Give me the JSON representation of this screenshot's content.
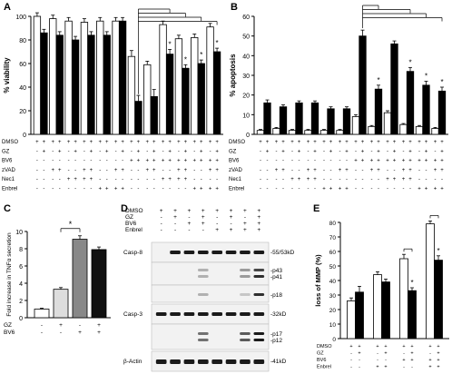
{
  "figure": {
    "panels": [
      "A",
      "B",
      "C",
      "D",
      "E"
    ],
    "colors": {
      "white_bar": "#ffffff",
      "black_bar": "#000000",
      "gray_bar": "#888888",
      "light_bar": "#d9d9d9",
      "blot_bg": "#f2f2f2",
      "band": "#1a1a1a"
    }
  },
  "chart_data": [
    {
      "panel": "A",
      "type": "bar",
      "ylabel": "% viability",
      "ylim": [
        0,
        100
      ],
      "yticks": [
        0,
        20,
        40,
        60,
        80,
        100
      ],
      "row_labels": [
        "DMSO",
        "GZ",
        "BV6",
        "zVAD",
        "Nec1",
        "Enbrel"
      ],
      "treatment_rows": [
        [
          "+",
          "+",
          "+",
          "+",
          "+",
          "+",
          "+",
          "+",
          "+",
          "+",
          "+",
          "+",
          "+",
          "+",
          "+",
          "+",
          "+",
          "+",
          "+",
          "+",
          "+",
          "+",
          "+",
          "+"
        ],
        [
          "-",
          "+",
          "-",
          "+",
          "-",
          "+",
          "-",
          "+",
          "-",
          "+",
          "-",
          "+",
          "-",
          "+",
          "-",
          "+",
          "-",
          "+",
          "-",
          "+",
          "-",
          "+",
          "-",
          "+"
        ],
        [
          "-",
          "-",
          "-",
          "-",
          "-",
          "-",
          "-",
          "-",
          "-",
          "-",
          "-",
          "-",
          "+",
          "+",
          "+",
          "+",
          "+",
          "+",
          "+",
          "+",
          "+",
          "+",
          "+",
          "+"
        ],
        [
          "-",
          "-",
          "+",
          "+",
          "-",
          "-",
          "+",
          "+",
          "-",
          "-",
          "+",
          "+",
          "-",
          "-",
          "+",
          "+",
          "-",
          "-",
          "+",
          "+",
          "-",
          "-",
          "+",
          "+"
        ],
        [
          "-",
          "-",
          "-",
          "-",
          "+",
          "+",
          "+",
          "+",
          "-",
          "-",
          "-",
          "-",
          "-",
          "-",
          "-",
          "-",
          "+",
          "+",
          "+",
          "+",
          "-",
          "-",
          "-",
          "-"
        ],
        [
          "-",
          "-",
          "-",
          "-",
          "-",
          "-",
          "-",
          "-",
          "+",
          "+",
          "+",
          "+",
          "-",
          "-",
          "-",
          "-",
          "-",
          "-",
          "-",
          "-",
          "+",
          "+",
          "+",
          "+"
        ]
      ],
      "series": [
        {
          "name": "",
          "values": [
            100,
            98,
            96,
            95,
            96,
            96,
            66,
            59,
            93,
            81,
            82,
            91
          ]
        },
        {
          "name": "",
          "values": [
            86,
            84,
            80,
            84,
            84,
            96,
            28,
            32,
            68,
            56,
            60,
            70
          ]
        }
      ],
      "errors": [
        [
          3,
          3,
          3,
          3,
          3,
          3,
          5,
          3,
          3,
          3,
          3,
          3
        ],
        [
          3,
          3,
          3,
          3,
          3,
          3,
          5,
          6,
          4,
          3,
          3,
          3
        ]
      ],
      "significance": [
        "",
        "",
        "",
        "",
        "",
        "",
        "",
        "",
        "*",
        "*",
        "*",
        "*"
      ]
    },
    {
      "panel": "B",
      "type": "bar",
      "ylabel": "% apoptosis",
      "ylim": [
        0,
        60
      ],
      "yticks": [
        0,
        10,
        20,
        30,
        40,
        50,
        60
      ],
      "row_labels": [
        "DMSO",
        "GZ",
        "BV6",
        "zVAD",
        "Nec1",
        "Enbrel"
      ],
      "treatment_rows": [
        [
          "+",
          "+",
          "+",
          "+",
          "+",
          "+",
          "+",
          "+",
          "+",
          "+",
          "+",
          "+",
          "+",
          "+",
          "+",
          "+",
          "+",
          "+",
          "+",
          "+",
          "+",
          "+",
          "+",
          "+"
        ],
        [
          "-",
          "+",
          "-",
          "+",
          "-",
          "+",
          "-",
          "+",
          "-",
          "+",
          "-",
          "+",
          "-",
          "+",
          "-",
          "+",
          "-",
          "+",
          "-",
          "+",
          "-",
          "+",
          "-",
          "+"
        ],
        [
          "-",
          "-",
          "-",
          "-",
          "-",
          "-",
          "-",
          "-",
          "-",
          "-",
          "-",
          "-",
          "+",
          "+",
          "+",
          "+",
          "+",
          "+",
          "+",
          "+",
          "+",
          "+",
          "+",
          "+"
        ],
        [
          "-",
          "-",
          "+",
          "+",
          "-",
          "-",
          "+",
          "+",
          "-",
          "-",
          "+",
          "+",
          "-",
          "-",
          "+",
          "+",
          "-",
          "-",
          "+",
          "+",
          "-",
          "-",
          "+",
          "+"
        ],
        [
          "-",
          "-",
          "-",
          "-",
          "+",
          "+",
          "+",
          "+",
          "-",
          "-",
          "-",
          "-",
          "-",
          "-",
          "-",
          "-",
          "+",
          "+",
          "+",
          "+",
          "-",
          "-",
          "-",
          "-"
        ],
        [
          "-",
          "-",
          "-",
          "-",
          "-",
          "-",
          "-",
          "-",
          "+",
          "+",
          "+",
          "+",
          "-",
          "-",
          "-",
          "-",
          "-",
          "-",
          "-",
          "-",
          "+",
          "+",
          "+",
          "+"
        ]
      ],
      "series": [
        {
          "name": "",
          "values": [
            2,
            3,
            2,
            2,
            2,
            2,
            9,
            4,
            11,
            5,
            4,
            3
          ]
        },
        {
          "name": "",
          "values": [
            16,
            14,
            16,
            16,
            13,
            13,
            50,
            23,
            46,
            32,
            25,
            22
          ]
        }
      ],
      "errors": [
        [
          0.5,
          0.5,
          0.5,
          0.5,
          0.5,
          0.5,
          1,
          0.5,
          1,
          0.5,
          0.5,
          0.5
        ],
        [
          1.5,
          1,
          1,
          1,
          1,
          1,
          3,
          2,
          1.5,
          2,
          2,
          2
        ]
      ],
      "significance": [
        "",
        "",
        "",
        "",
        "",
        "",
        "",
        "*",
        "",
        "*",
        "*",
        "*"
      ]
    },
    {
      "panel": "C",
      "type": "bar",
      "ylabel": "Fold increase in TNFα secretion",
      "ylim": [
        0,
        10
      ],
      "yticks": [
        0,
        2,
        4,
        6,
        8,
        10
      ],
      "row_labels": [
        "GZ",
        "BV6"
      ],
      "treatment_rows": [
        [
          "-",
          "+",
          "-",
          "+"
        ],
        [
          "-",
          "-",
          "+",
          "+"
        ]
      ],
      "values": [
        1.0,
        3.3,
        9.1,
        7.9
      ],
      "errors": [
        0.1,
        0.2,
        0.4,
        0.3
      ],
      "bar_colors": [
        "#ffffff",
        "#dddddd",
        "#888888",
        "#111111"
      ],
      "significance": "*"
    },
    {
      "panel": "E",
      "type": "bar",
      "ylabel": "loss of MMP (%)",
      "ylim": [
        0,
        80
      ],
      "yticks": [
        0,
        10,
        20,
        30,
        40,
        50,
        60,
        70,
        80
      ],
      "row_labels": [
        "DMSO",
        "GZ",
        "BV6",
        "Enbrel"
      ],
      "treatment_rows": [
        [
          "+",
          "+",
          "+",
          "+",
          "+",
          "+",
          "+",
          "+"
        ],
        [
          "-",
          "+",
          "-",
          "+",
          "-",
          "+",
          "-",
          "+"
        ],
        [
          "-",
          "-",
          "-",
          "-",
          "+",
          "+",
          "+",
          "+"
        ],
        [
          "-",
          "-",
          "+",
          "+",
          "-",
          "-",
          "+",
          "+"
        ]
      ],
      "series": [
        {
          "name": "",
          "values": [
            26,
            44,
            55,
            79
          ]
        },
        {
          "name": "",
          "values": [
            32,
            39,
            33,
            54
          ]
        }
      ],
      "errors": [
        [
          2,
          2,
          3,
          2
        ],
        [
          4,
          2,
          2,
          3
        ]
      ],
      "significance": [
        "",
        "",
        "*",
        "*"
      ]
    }
  ],
  "blot": {
    "panel": "D",
    "row_labels": [
      "DMSO",
      "GZ",
      "BV6",
      "Enbrel"
    ],
    "treatment_rows": [
      [
        "+",
        "+",
        "+",
        "+",
        "+",
        "+",
        "+",
        "+"
      ],
      [
        "-",
        "+",
        "-",
        "+",
        "-",
        "+",
        "-",
        "+"
      ],
      [
        "-",
        "-",
        "+",
        "+",
        "-",
        "-",
        "+",
        "+"
      ],
      [
        "-",
        "-",
        "-",
        "-",
        "+",
        "+",
        "+",
        "+"
      ]
    ],
    "blots": [
      {
        "label": "Casp-8",
        "size": "-55/53kD"
      },
      {
        "label": "",
        "size_labels": [
          "-p43",
          "-p41"
        ]
      },
      {
        "label": "",
        "size": "-p18"
      },
      {
        "label": "Casp-3",
        "size": "-32kD"
      },
      {
        "label": "",
        "size_labels": [
          "-p17",
          "-p12"
        ]
      },
      {
        "label": "β-Actin",
        "size": "-41kD"
      }
    ]
  }
}
